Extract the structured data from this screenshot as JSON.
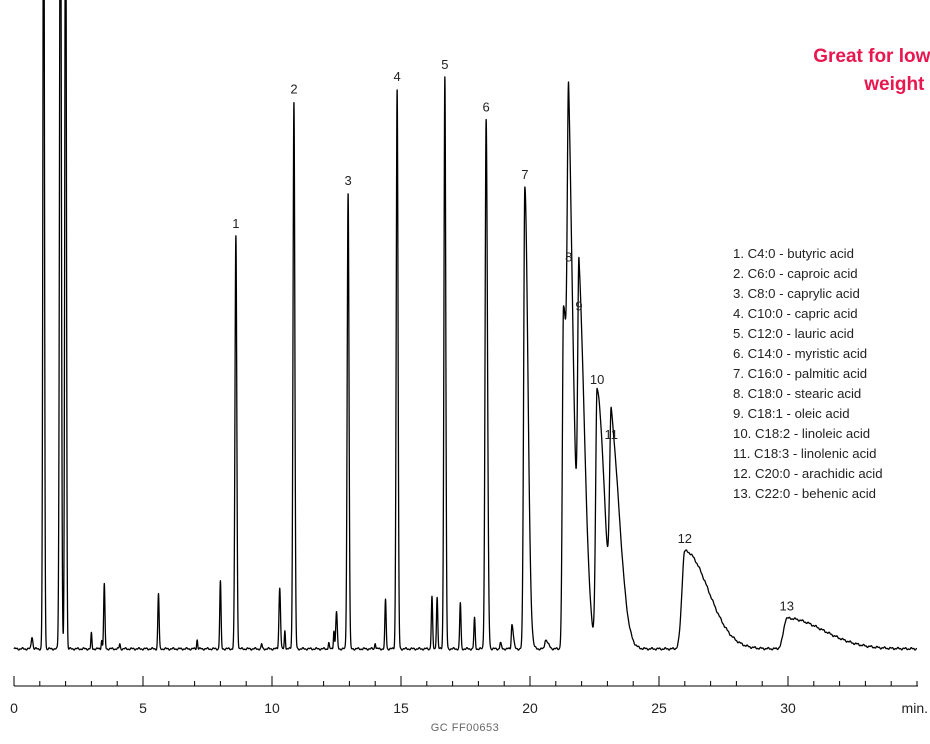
{
  "headline": {
    "line1": "Great for low t",
    "line2": "weight f"
  },
  "footnote": "GC  FF00653",
  "legend": [
    "1. C4:0 - butyric acid",
    "2. C6:0 - caproic acid",
    "3. C8:0 - caprylic acid",
    "4. C10:0 - capric acid",
    "5. C12:0 - lauric acid",
    "6. C14:0 - myristic acid",
    "7. C16:0 - palmitic acid",
    "8. C18:0 - stearic acid",
    "9. C18:1 - oleic acid",
    "10. C18:2 - linoleic acid",
    "11. C18:3 - linolenic acid",
    "12. C20:0 - arachidic acid",
    "13. C22:0 - behenic acid"
  ],
  "colors": {
    "trace": "#000000",
    "headline": "#e8174f",
    "text": "#222222"
  },
  "chart_data": {
    "type": "line",
    "title": "",
    "xlabel": "min.",
    "ylabel": "",
    "xlim": [
      0,
      35
    ],
    "ylim": [
      0,
      100
    ],
    "x_ticks": [
      0,
      5,
      10,
      15,
      20,
      25,
      30
    ],
    "grid": false,
    "legend_placement": "right",
    "series": [
      {
        "peaks": [
          {
            "label": "1",
            "x": 8.6,
            "y": 67.5,
            "w": 0.035
          },
          {
            "label": "2",
            "x": 10.85,
            "y": 89.5,
            "w": 0.035
          },
          {
            "label": "3",
            "x": 12.95,
            "y": 74.5,
            "w": 0.035
          },
          {
            "label": "4",
            "x": 14.85,
            "y": 91.5,
            "w": 0.035
          },
          {
            "label": "5",
            "x": 16.7,
            "y": 93.5,
            "w": 0.035
          },
          {
            "label": "6",
            "x": 18.3,
            "y": 86.5,
            "w": 0.04
          },
          {
            "label": "7",
            "x": 19.8,
            "y": 75.5,
            "w": 0.045
          },
          {
            "label": "8",
            "x": 21.5,
            "y": 62.0,
            "w": 0.05
          },
          {
            "label": "9",
            "x": 21.9,
            "y": 54.0,
            "w": 0.05
          },
          {
            "label": "10",
            "x": 22.6,
            "y": 42.0,
            "w": 0.055
          },
          {
            "label": "11",
            "x": 23.15,
            "y": 33.0,
            "w": 0.06
          },
          {
            "label": "12",
            "x": 26.0,
            "y": 16.0,
            "w": 0.11
          },
          {
            "label": "13",
            "x": 29.95,
            "y": 5.0,
            "w": 0.12
          }
        ]
      }
    ]
  }
}
